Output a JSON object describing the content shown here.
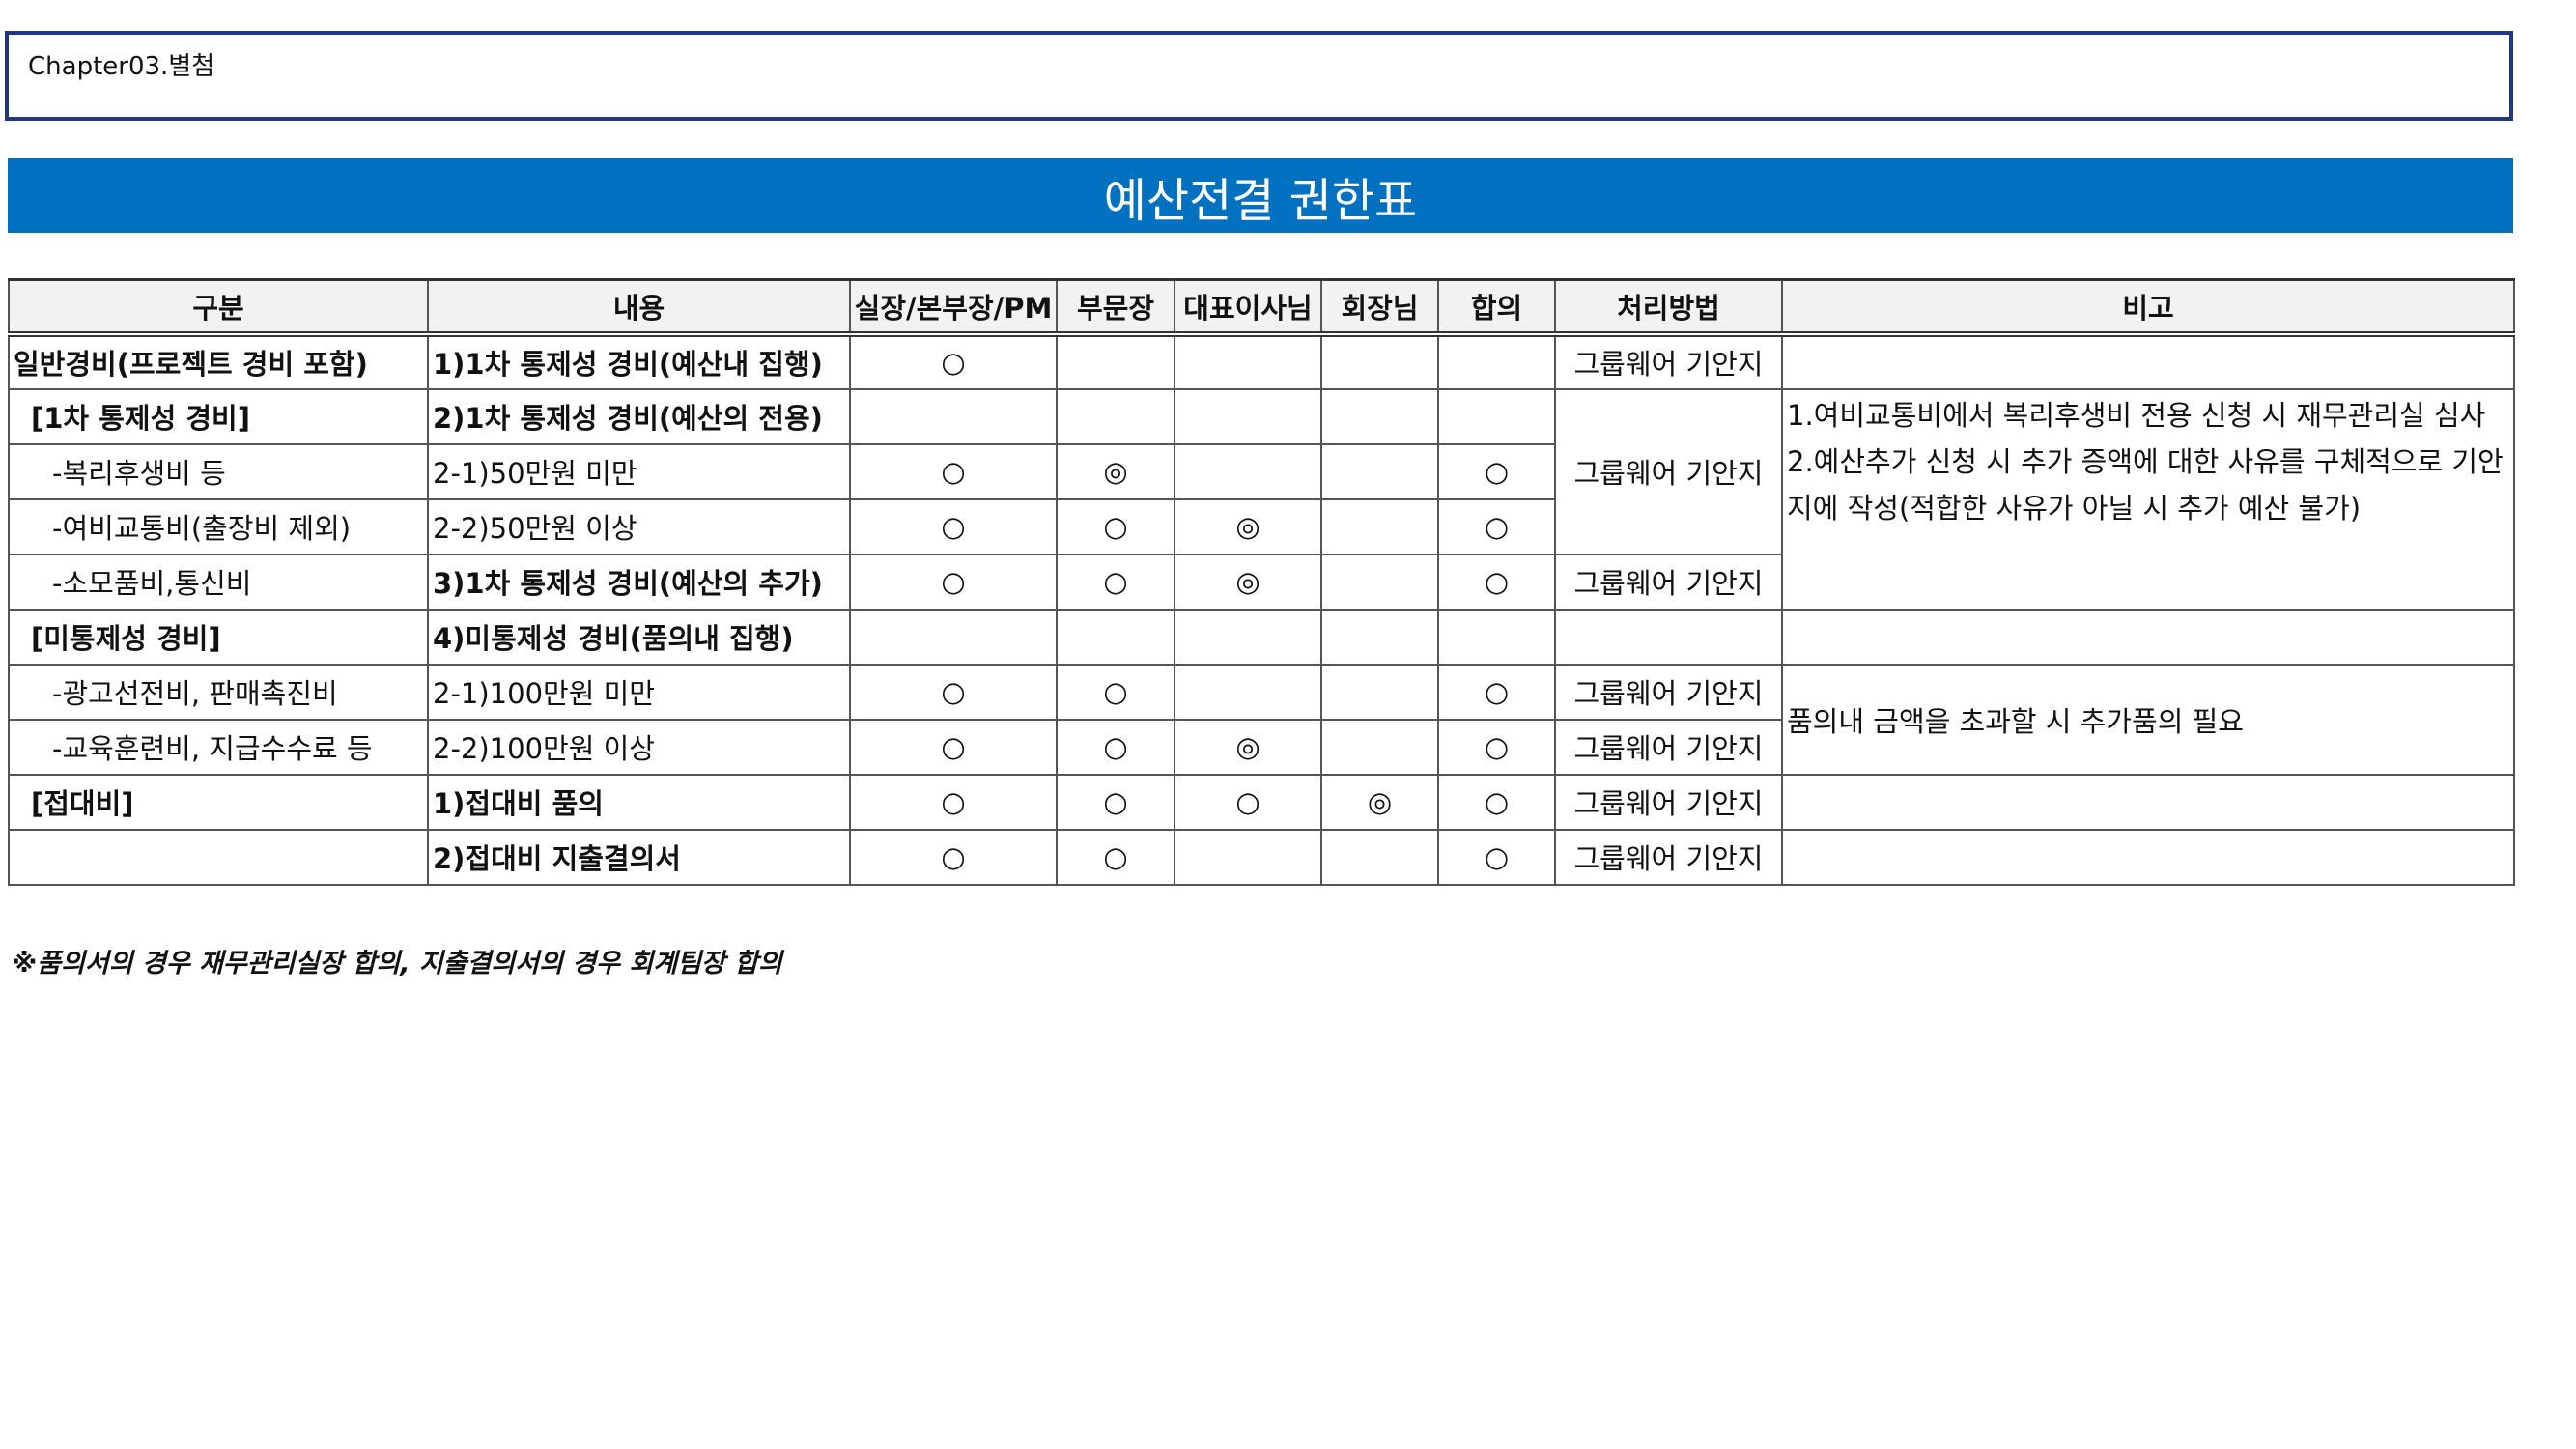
{
  "chapter": "Chapter03.별첨",
  "title": "예산전결 권한표",
  "headers": [
    "구분",
    "내용",
    "실장/본부장/PM",
    "부문장",
    "대표이사님",
    "회장님",
    "합의",
    "처리방법",
    "비고"
  ],
  "rows": [
    {
      "category": "일반경비(프로젝트 경비 포함)",
      "content": "1)1차 통제성 경비(예산내 집행)",
      "m1": "○",
      "m2": "",
      "m3": "",
      "m4": "",
      "m5": "",
      "method": "그룹웨어 기안지"
    },
    {
      "category": "[1차 통제성 경비]",
      "content": "2)1차 통제성 경비(예산의 전용)",
      "m1": "",
      "m2": "",
      "m3": "",
      "m4": "",
      "m5": ""
    },
    {
      "category": "-복리후생비 등",
      "content": "2-1)50만원 미만",
      "m1": "○",
      "m2": "◎",
      "m3": "",
      "m4": "",
      "m5": "○"
    },
    {
      "category": "-여비교통비(출장비 제외)",
      "content": "2-2)50만원 이상",
      "m1": "○",
      "m2": "○",
      "m3": "◎",
      "m4": "",
      "m5": "○"
    },
    {
      "category": "-소모품비,통신비",
      "content": "3)1차 통제성 경비(예산의 추가)",
      "m1": "○",
      "m2": "○",
      "m3": "◎",
      "m4": "",
      "m5": "○",
      "method": "그룹웨어 기안지"
    },
    {
      "category": "[미통제성 경비]",
      "content": "4)미통제성 경비(품의내 집행)",
      "m1": "",
      "m2": "",
      "m3": "",
      "m4": "",
      "m5": "",
      "method": ""
    },
    {
      "category": "-광고선전비, 판매촉진비",
      "content": "2-1)100만원 미만",
      "m1": "○",
      "m2": "○",
      "m3": "",
      "m4": "",
      "m5": "○",
      "method": "그룹웨어 기안지"
    },
    {
      "category": "-교육훈련비, 지급수수료 등",
      "content": "2-2)100만원 이상",
      "m1": "○",
      "m2": "○",
      "m3": "◎",
      "m4": "",
      "m5": "○",
      "method": "그룹웨어 기안지"
    },
    {
      "category": "[접대비]",
      "content": "1)접대비 품의",
      "m1": "○",
      "m2": "○",
      "m3": "○",
      "m4": "◎",
      "m5": "○",
      "method": "그룹웨어 기안지"
    },
    {
      "category": "",
      "content": "2)접대비 지출결의서",
      "m1": "○",
      "m2": "○",
      "m3": "",
      "m4": "",
      "m5": "○",
      "method": "그룹웨어 기안지"
    }
  ],
  "merged_method_r2_r4": "그룹웨어 기안지",
  "note_r2_r5": [
    "1.여비교통비에서 복리후생비 전용 신청 시 재무관리실 심사",
    "2.예산추가 신청 시 추가 증액에 대한 사유를 구체적으로 기안지에 작성(적합한 사유가 아닐 시 추가 예산 불가)"
  ],
  "note_r7_r8": "품의내 금액을 초과할 시 추가품의 필요",
  "footnote": "※품의서의 경우 재무관리실장 합의, 지출결의서의 경우 회계팀장 합의"
}
